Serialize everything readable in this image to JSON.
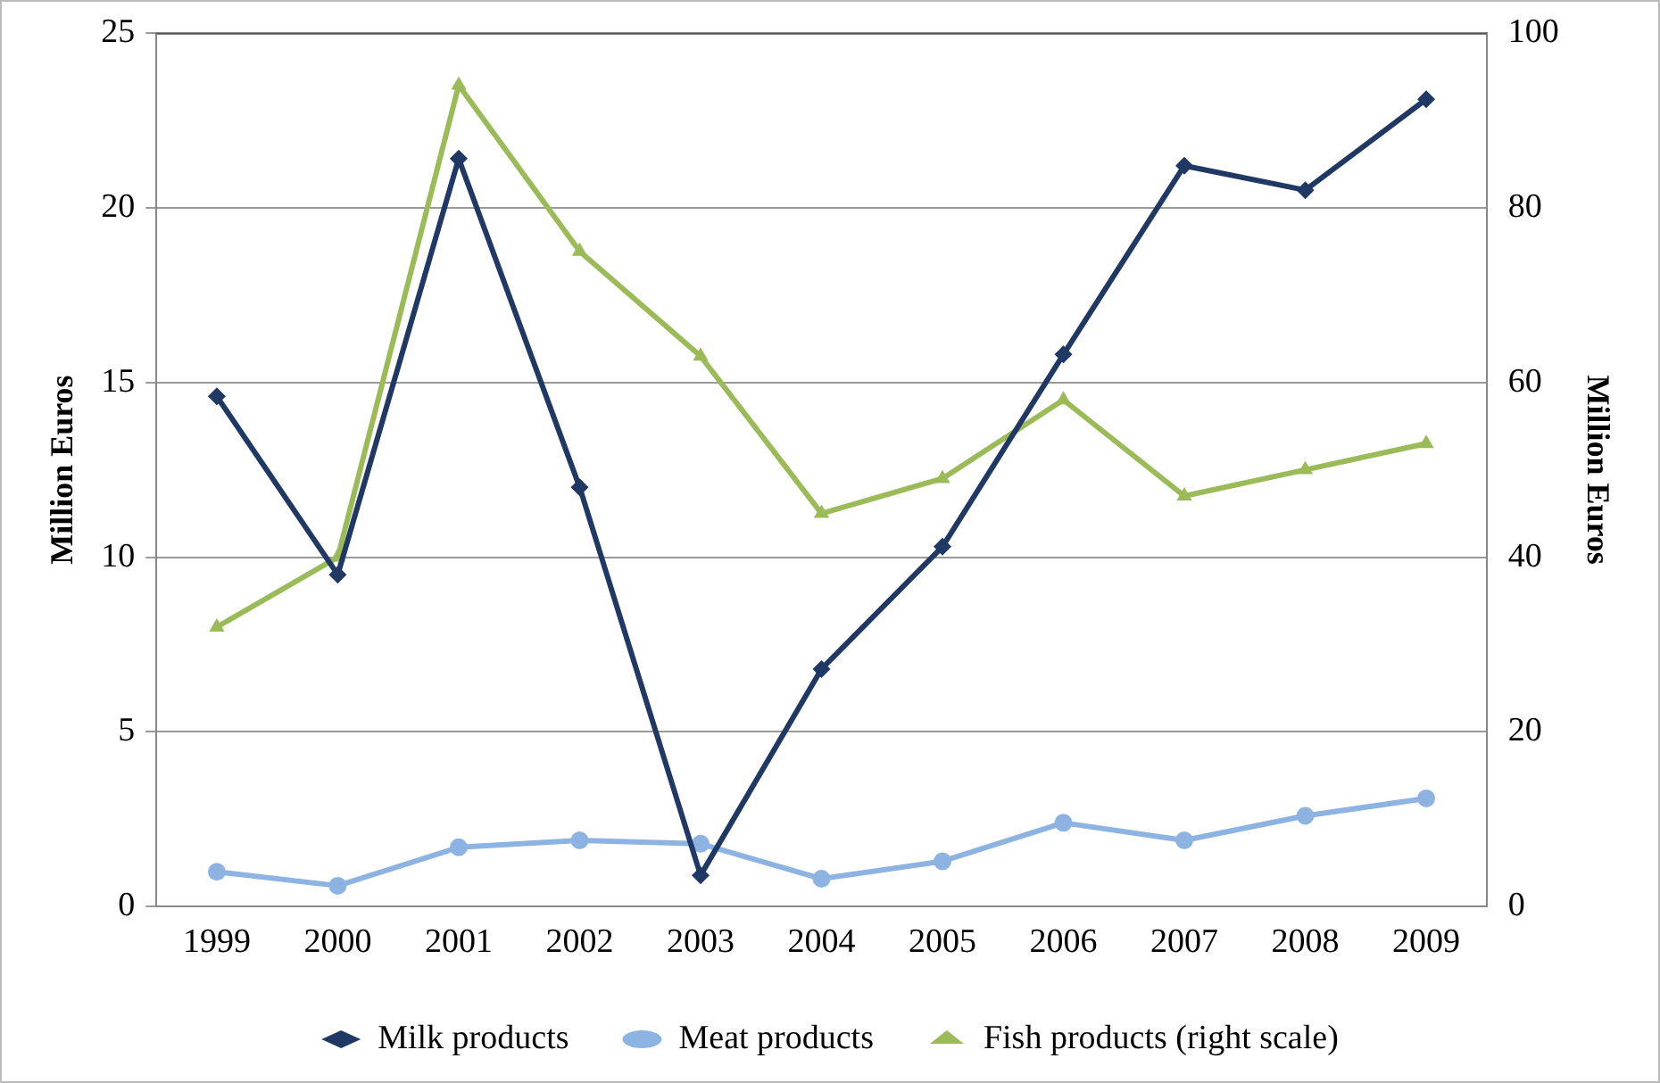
{
  "chart_data": {
    "type": "line",
    "ylabel": "Million Euros",
    "y2label": "Million Euros",
    "categories": [
      "1999",
      "2000",
      "2001",
      "2002",
      "2003",
      "2004",
      "2005",
      "2006",
      "2007",
      "2008",
      "2009"
    ],
    "series": [
      {
        "name": "Milk products",
        "color": "#1f3864",
        "marker": "diamond",
        "values": [
          14.6,
          9.5,
          21.4,
          12.0,
          0.9,
          6.8,
          10.3,
          15.8,
          21.2,
          20.5,
          23.1
        ]
      },
      {
        "name": "Meat products",
        "color": "#8db3e2",
        "marker": "circle",
        "values": [
          1.0,
          0.6,
          1.7,
          1.9,
          1.8,
          0.8,
          1.3,
          2.4,
          1.9,
          2.6,
          3.1
        ]
      },
      {
        "name": "Fish products (right scale)",
        "color": "#9bbb59",
        "marker": "triangle",
        "axis": "y2",
        "values": [
          32,
          40,
          94,
          75,
          63,
          45,
          49,
          58,
          47,
          50,
          53
        ]
      }
    ],
    "ylim": [
      0,
      25
    ],
    "yticks": [
      0,
      5,
      10,
      15,
      20,
      25
    ],
    "y2lim": [
      0,
      100
    ],
    "y2ticks": [
      0,
      20,
      40,
      60,
      80,
      100
    ],
    "grid": "y",
    "legend": "bottom",
    "line_style": "solid"
  }
}
